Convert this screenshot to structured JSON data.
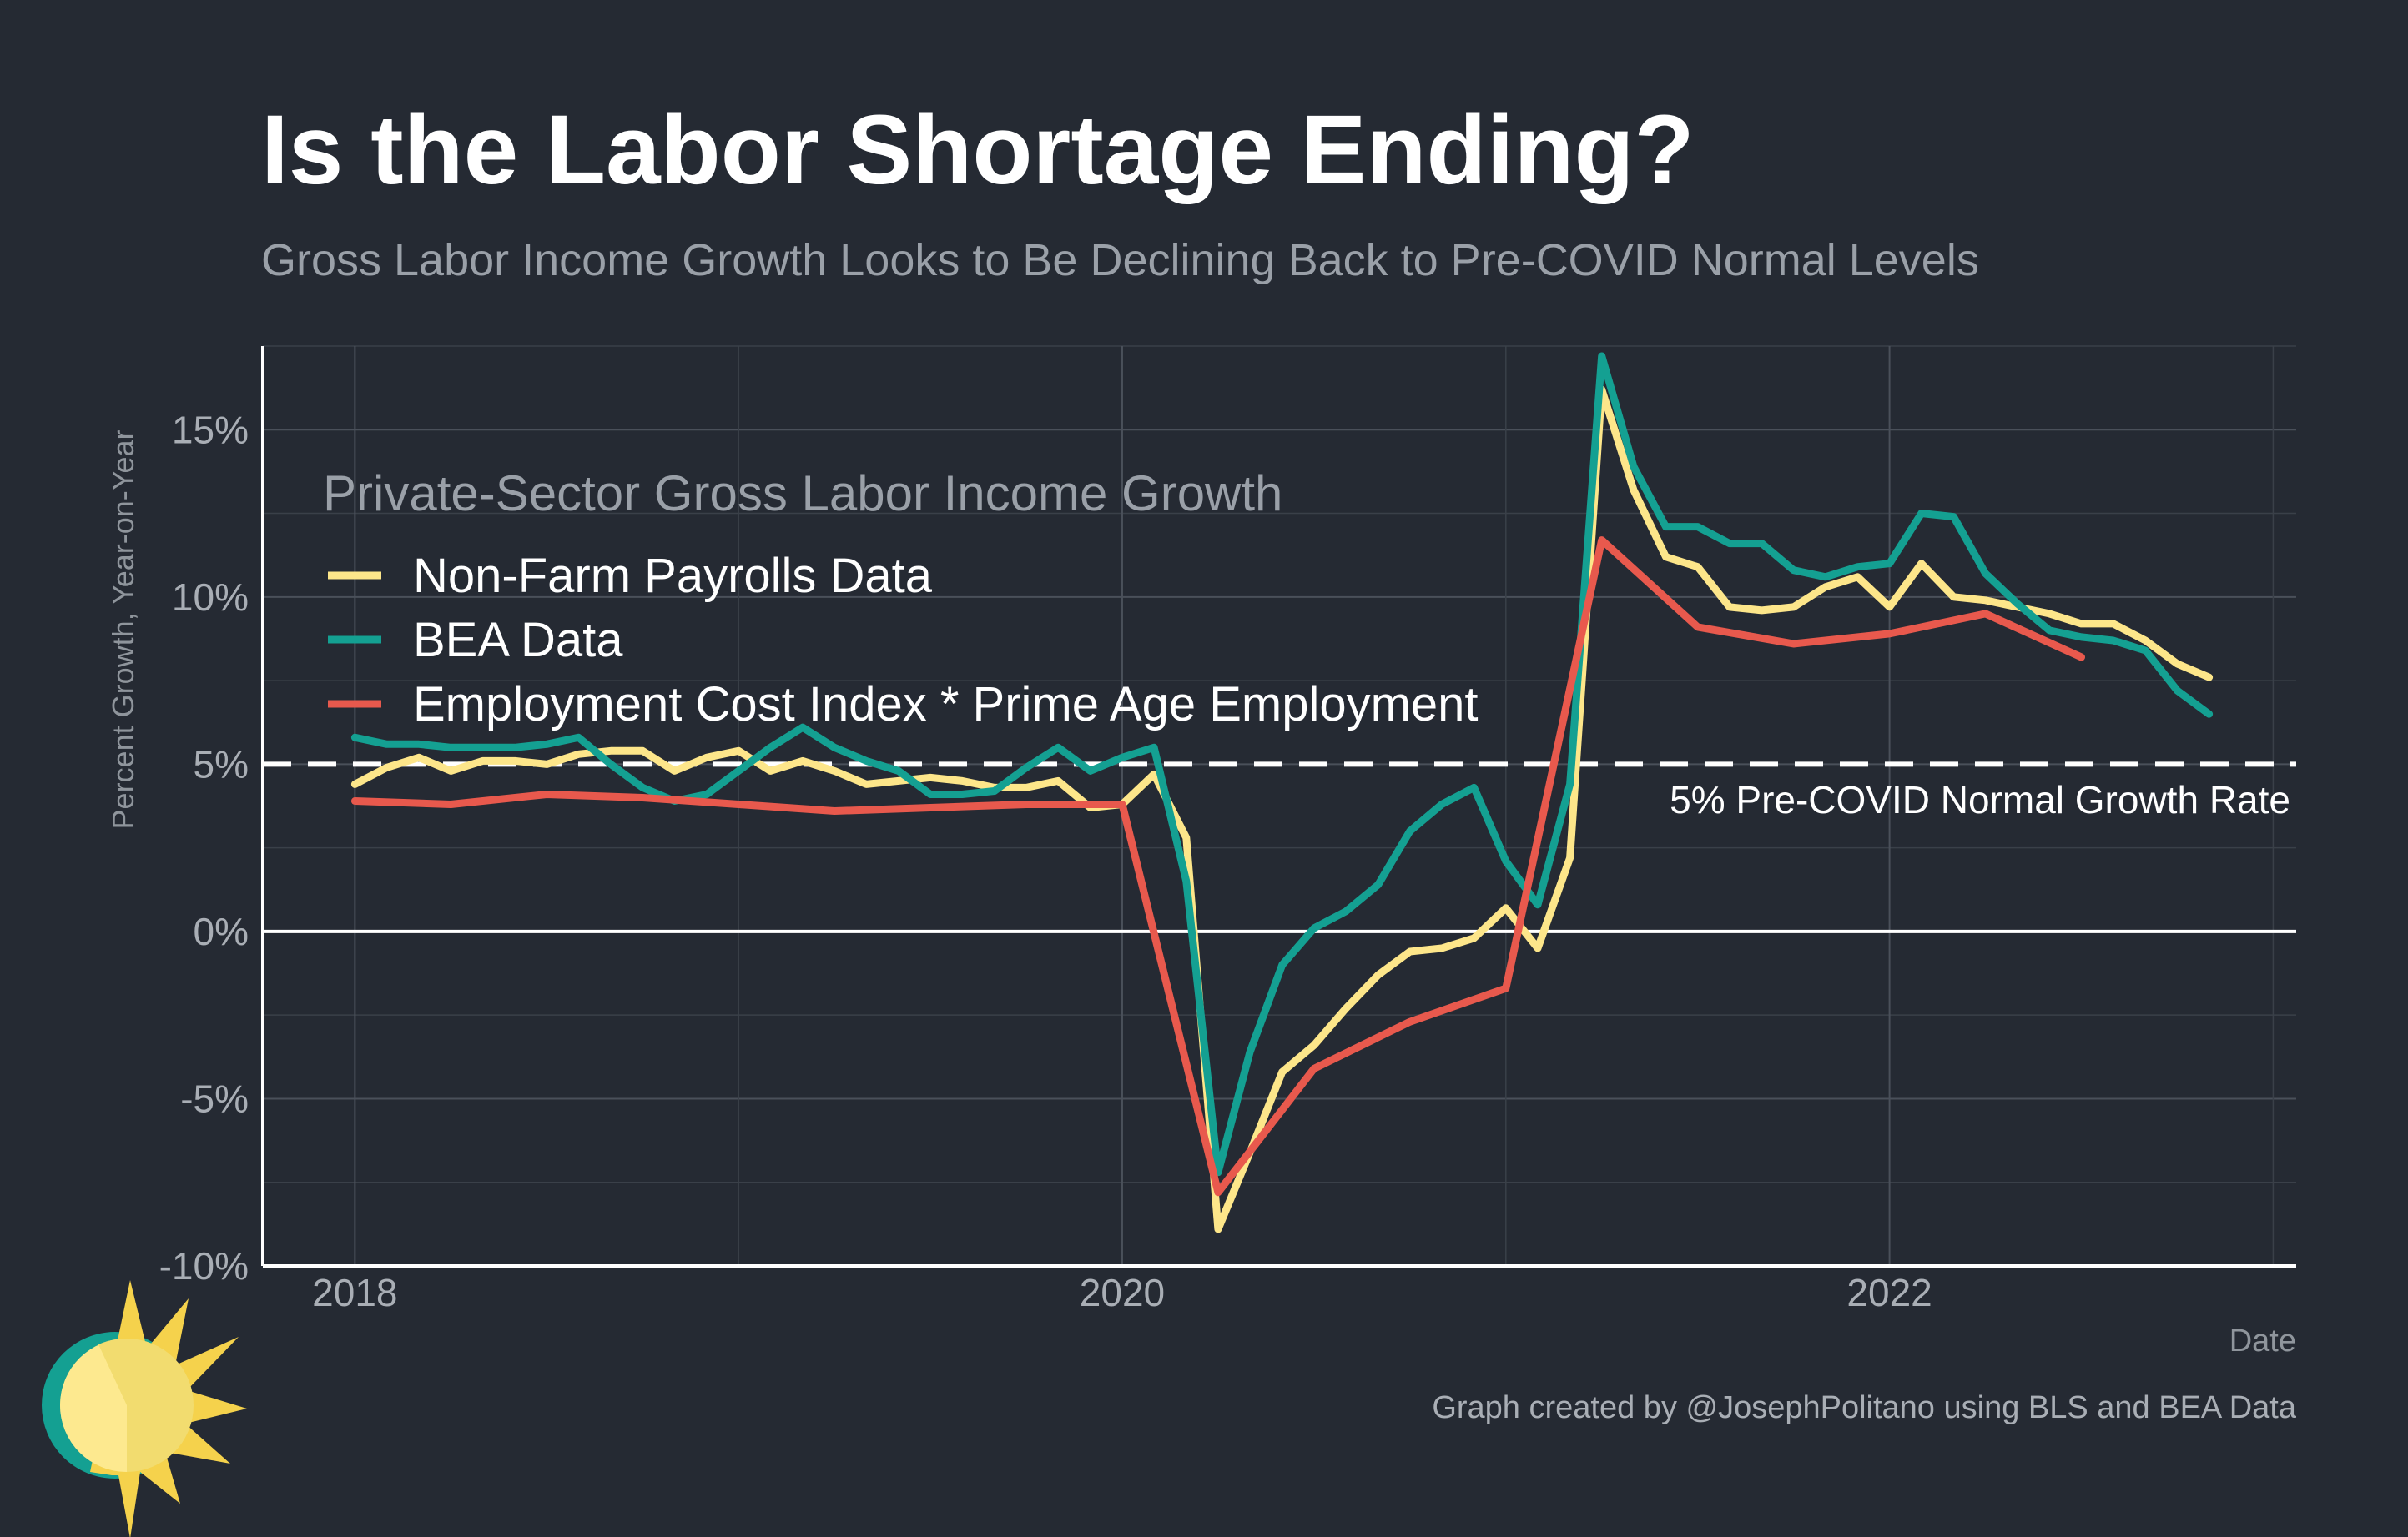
{
  "chart_data": {
    "type": "line",
    "title": "Is the Labor Shortage Ending?",
    "subtitle": "Gross Labor Income Growth Looks to Be Declining Back to Pre-COVID Normal Levels",
    "xlabel": "Date",
    "ylabel": "Percent Growth, Year-on-Year",
    "caption": "Graph created by @JosephPolitano using BLS and BEA Data",
    "legend_title": "Private-Sector Gross Labor Income Growth",
    "legend_position": "top-left",
    "xlim": [
      2017.76,
      2023.06
    ],
    "ylim": [
      -10,
      17.5
    ],
    "x_ticks": [
      2018,
      2020,
      2022
    ],
    "x_tick_labels": [
      "2018",
      "2020",
      "2022"
    ],
    "y_ticks": [
      -10,
      -5,
      0,
      5,
      10,
      15
    ],
    "y_tick_labels": [
      "-10%",
      "-5%",
      "0%",
      "5%",
      "10%",
      "15%"
    ],
    "grid": true,
    "reference_lines": [
      {
        "value": 5,
        "style": "dashed",
        "label": "5% Pre-COVID Normal Growth Rate"
      },
      {
        "value": 0,
        "style": "solid",
        "label": ""
      }
    ],
    "series": [
      {
        "name": "Non-Farm Payrolls Data",
        "color": "#fde68a",
        "x": [
          2018.0,
          2018.083,
          2018.167,
          2018.25,
          2018.333,
          2018.417,
          2018.5,
          2018.583,
          2018.667,
          2018.75,
          2018.833,
          2018.917,
          2019.0,
          2019.083,
          2019.167,
          2019.25,
          2019.333,
          2019.417,
          2019.5,
          2019.583,
          2019.667,
          2019.75,
          2019.833,
          2019.917,
          2020.0,
          2020.083,
          2020.167,
          2020.25,
          2020.333,
          2020.417,
          2020.5,
          2020.583,
          2020.667,
          2020.75,
          2020.833,
          2020.917,
          2021.0,
          2021.083,
          2021.167,
          2021.25,
          2021.333,
          2021.417,
          2021.5,
          2021.583,
          2021.667,
          2021.75,
          2021.833,
          2021.917,
          2022.0,
          2022.083,
          2022.167,
          2022.25,
          2022.333,
          2022.417,
          2022.5,
          2022.583,
          2022.667,
          2022.75,
          2022.833
        ],
        "values": [
          4.4,
          4.9,
          5.2,
          4.8,
          5.1,
          5.1,
          5.0,
          5.3,
          5.4,
          5.4,
          4.8,
          5.2,
          5.4,
          4.8,
          5.1,
          4.8,
          4.4,
          4.5,
          4.6,
          4.5,
          4.3,
          4.3,
          4.5,
          3.7,
          3.8,
          4.7,
          2.8,
          -8.9,
          -6.6,
          -4.2,
          -3.4,
          -2.3,
          -1.3,
          -0.6,
          -0.5,
          -0.2,
          0.7,
          -0.5,
          2.2,
          16.2,
          13.2,
          11.2,
          10.9,
          9.7,
          9.6,
          9.7,
          10.3,
          10.6,
          9.7,
          11.0,
          10.0,
          9.9,
          9.7,
          9.5,
          9.2,
          9.2,
          8.7,
          8.0,
          7.6
        ]
      },
      {
        "name": "BEA Data",
        "color": "#14a092",
        "x": [
          2018.0,
          2018.083,
          2018.167,
          2018.25,
          2018.333,
          2018.417,
          2018.5,
          2018.583,
          2018.667,
          2018.75,
          2018.833,
          2018.917,
          2019.0,
          2019.083,
          2019.167,
          2019.25,
          2019.333,
          2019.417,
          2019.5,
          2019.583,
          2019.667,
          2019.75,
          2019.833,
          2019.917,
          2020.0,
          2020.083,
          2020.167,
          2020.25,
          2020.333,
          2020.417,
          2020.5,
          2020.583,
          2020.667,
          2020.75,
          2020.833,
          2020.917,
          2021.0,
          2021.083,
          2021.167,
          2021.25,
          2021.333,
          2021.417,
          2021.5,
          2021.583,
          2021.667,
          2021.75,
          2021.833,
          2021.917,
          2022.0,
          2022.083,
          2022.167,
          2022.25,
          2022.333,
          2022.417,
          2022.5,
          2022.583,
          2022.667,
          2022.75,
          2022.833
        ],
        "values": [
          5.8,
          5.6,
          5.6,
          5.5,
          5.5,
          5.5,
          5.6,
          5.8,
          5.0,
          4.3,
          3.9,
          4.1,
          4.8,
          5.5,
          6.1,
          5.5,
          5.1,
          4.8,
          4.1,
          4.1,
          4.2,
          4.9,
          5.5,
          4.8,
          5.2,
          5.5,
          1.5,
          -7.2,
          -3.6,
          -1.0,
          0.1,
          0.6,
          1.4,
          3.0,
          3.8,
          4.3,
          2.1,
          0.8,
          4.4,
          17.2,
          13.9,
          12.1,
          12.1,
          11.6,
          11.6,
          10.8,
          10.6,
          10.9,
          11.0,
          12.5,
          12.4,
          10.7,
          9.8,
          9.0,
          8.8,
          8.7,
          8.4,
          7.2,
          6.5
        ]
      },
      {
        "name": "Employment Cost Index * Prime Age Employment",
        "color": "#e8594d",
        "x": [
          2018.0,
          2018.25,
          2018.5,
          2018.75,
          2019.0,
          2019.25,
          2019.5,
          2019.75,
          2020.0,
          2020.25,
          2020.5,
          2020.75,
          2021.0,
          2021.25,
          2021.5,
          2021.75,
          2022.0,
          2022.25,
          2022.5
        ],
        "values": [
          3.9,
          3.8,
          4.1,
          4.0,
          3.8,
          3.6,
          3.7,
          3.8,
          3.8,
          -7.8,
          -4.1,
          -2.7,
          -1.7,
          11.7,
          9.1,
          8.6,
          8.9,
          9.5,
          8.2
        ]
      }
    ]
  }
}
